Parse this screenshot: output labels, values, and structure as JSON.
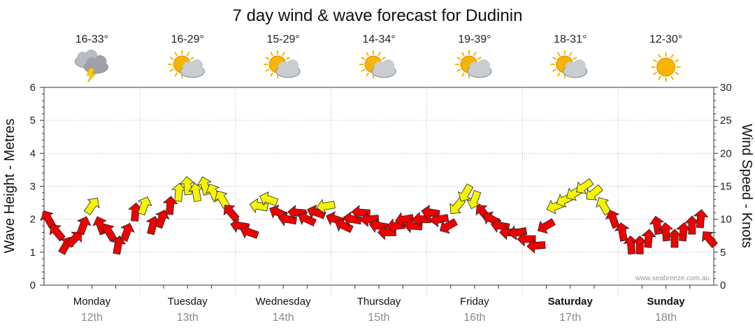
{
  "chart_data": {
    "type": "forecast",
    "title": "7 day wind & wave forecast for Dudinin",
    "y_left_label": "Wave Height - Metres",
    "y_right_label": "Wind Speed - Knots",
    "y_left_ticks": [
      "0",
      "1",
      "2",
      "3",
      "4",
      "5",
      "6"
    ],
    "y_right_ticks": [
      "0",
      "5",
      "10",
      "15",
      "20",
      "25",
      "30"
    ],
    "y_left_range": [
      0,
      6
    ],
    "y_right_range": [
      0,
      30
    ],
    "watermark": "www.seabreeze.com.au",
    "arrow_colors": {
      "yellow": "#f5f500",
      "red": "#ee0000",
      "outline": "#222222"
    },
    "days": [
      {
        "name": "Monday",
        "date": "12th",
        "bold": false,
        "temp": "16-33°",
        "icon": "storm-cloud-icon",
        "wind": [
          {
            "knots": 10,
            "dir": 150,
            "color": "red"
          },
          {
            "knots": 8,
            "dir": 140,
            "color": "red"
          },
          {
            "knots": 6,
            "dir": 210,
            "color": "red"
          },
          {
            "knots": 7,
            "dir": 225,
            "color": "red"
          },
          {
            "knots": 9,
            "dir": 200,
            "color": "red"
          },
          {
            "knots": 12,
            "dir": 215,
            "color": "yellow"
          },
          {
            "knots": 9,
            "dir": 160,
            "color": "red"
          },
          {
            "knots": 8,
            "dir": 150,
            "color": "red"
          },
          {
            "knots": 6,
            "dir": 190,
            "color": "red"
          },
          {
            "knots": 8,
            "dir": 200,
            "color": "red"
          },
          {
            "knots": 11,
            "dir": 185,
            "color": "red"
          }
        ]
      },
      {
        "name": "Tuesday",
        "date": "13th",
        "bold": false,
        "temp": "16-29°",
        "icon": "sun-cloud-icon",
        "wind": [
          {
            "knots": 12,
            "dir": 200,
            "color": "yellow"
          },
          {
            "knots": 9,
            "dir": 195,
            "color": "red"
          },
          {
            "knots": 10,
            "dir": 200,
            "color": "red"
          },
          {
            "knots": 12,
            "dir": 185,
            "color": "red"
          },
          {
            "knots": 14,
            "dir": 185,
            "color": "yellow"
          },
          {
            "knots": 15,
            "dir": 175,
            "color": "yellow"
          },
          {
            "knots": 14,
            "dir": 170,
            "color": "yellow"
          },
          {
            "knots": 15,
            "dir": 165,
            "color": "yellow"
          },
          {
            "knots": 14,
            "dir": 155,
            "color": "yellow"
          },
          {
            "knots": 13,
            "dir": 150,
            "color": "yellow"
          },
          {
            "knots": 11,
            "dir": 140,
            "color": "red"
          }
        ]
      },
      {
        "name": "Wednesday",
        "date": "14th",
        "bold": false,
        "temp": "15-29°",
        "icon": "sun-cloud-icon",
        "wind": [
          {
            "knots": 9,
            "dir": 100,
            "color": "red"
          },
          {
            "knots": 8,
            "dir": 110,
            "color": "red"
          },
          {
            "knots": 12,
            "dir": 100,
            "color": "yellow"
          },
          {
            "knots": 13,
            "dir": 110,
            "color": "yellow"
          },
          {
            "knots": 11,
            "dir": 115,
            "color": "red"
          },
          {
            "knots": 10,
            "dir": 100,
            "color": "red"
          },
          {
            "knots": 11,
            "dir": 95,
            "color": "red"
          },
          {
            "knots": 10,
            "dir": 115,
            "color": "red"
          },
          {
            "knots": 11,
            "dir": 110,
            "color": "red"
          },
          {
            "knots": 12,
            "dir": 80,
            "color": "yellow"
          }
        ]
      },
      {
        "name": "Thursday",
        "date": "15th",
        "bold": false,
        "temp": "14-34°",
        "icon": "sun-cloud-icon",
        "wind": [
          {
            "knots": 10,
            "dir": 110,
            "color": "red"
          },
          {
            "knots": 9,
            "dir": 115,
            "color": "red"
          },
          {
            "knots": 10,
            "dir": 100,
            "color": "red"
          },
          {
            "knots": 11,
            "dir": 95,
            "color": "red"
          },
          {
            "knots": 10,
            "dir": 85,
            "color": "red"
          },
          {
            "knots": 9,
            "dir": 100,
            "color": "red"
          },
          {
            "knots": 8,
            "dir": 90,
            "color": "red"
          },
          {
            "knots": 9,
            "dir": 85,
            "color": "red"
          },
          {
            "knots": 10,
            "dir": 80,
            "color": "red"
          },
          {
            "knots": 9,
            "dir": 95,
            "color": "red"
          },
          {
            "knots": 10,
            "dir": 90,
            "color": "red"
          }
        ]
      },
      {
        "name": "Friday",
        "date": "16th",
        "bold": false,
        "temp": "19-39°",
        "icon": "sun-cloud-icon",
        "wind": [
          {
            "knots": 11,
            "dir": 100,
            "color": "red"
          },
          {
            "knots": 10,
            "dir": 80,
            "color": "red"
          },
          {
            "knots": 9,
            "dir": 60,
            "color": "red"
          },
          {
            "knots": 12,
            "dir": 40,
            "color": "yellow"
          },
          {
            "knots": 14,
            "dir": 30,
            "color": "yellow"
          },
          {
            "knots": 13,
            "dir": 20,
            "color": "yellow"
          },
          {
            "knots": 11,
            "dir": 140,
            "color": "red"
          },
          {
            "knots": 10,
            "dir": 120,
            "color": "red"
          },
          {
            "knots": 9,
            "dir": 100,
            "color": "red"
          },
          {
            "knots": 8,
            "dir": 90,
            "color": "red"
          },
          {
            "knots": 8,
            "dir": 80,
            "color": "red"
          }
        ]
      },
      {
        "name": "Saturday",
        "date": "17th",
        "bold": true,
        "temp": "18-31°",
        "icon": "sun-cloud-icon",
        "wind": [
          {
            "knots": 7,
            "dir": 90,
            "color": "red"
          },
          {
            "knots": 6,
            "dir": 85,
            "color": "red"
          },
          {
            "knots": 9,
            "dir": 60,
            "color": "red"
          },
          {
            "knots": 12,
            "dir": 70,
            "color": "yellow"
          },
          {
            "knots": 13,
            "dir": 65,
            "color": "yellow"
          },
          {
            "knots": 14,
            "dir": 60,
            "color": "yellow"
          },
          {
            "knots": 15,
            "dir": 55,
            "color": "yellow"
          },
          {
            "knots": 14,
            "dir": 50,
            "color": "yellow"
          },
          {
            "knots": 12,
            "dir": 150,
            "color": "yellow"
          },
          {
            "knots": 10,
            "dir": 160,
            "color": "red"
          }
        ]
      },
      {
        "name": "Sunday",
        "date": "18th",
        "bold": true,
        "temp": "12-30°",
        "icon": "sun-icon",
        "wind": [
          {
            "knots": 8,
            "dir": 170,
            "color": "red"
          },
          {
            "knots": 6,
            "dir": 175,
            "color": "red"
          },
          {
            "knots": 6,
            "dir": 180,
            "color": "red"
          },
          {
            "knots": 7,
            "dir": 185,
            "color": "red"
          },
          {
            "knots": 9,
            "dir": 170,
            "color": "red"
          },
          {
            "knots": 8,
            "dir": 175,
            "color": "red"
          },
          {
            "knots": 7,
            "dir": 180,
            "color": "red"
          },
          {
            "knots": 8,
            "dir": 185,
            "color": "red"
          },
          {
            "knots": 9,
            "dir": 180,
            "color": "red"
          },
          {
            "knots": 10,
            "dir": 185,
            "color": "red"
          },
          {
            "knots": 7,
            "dir": 140,
            "color": "red"
          }
        ]
      }
    ]
  }
}
